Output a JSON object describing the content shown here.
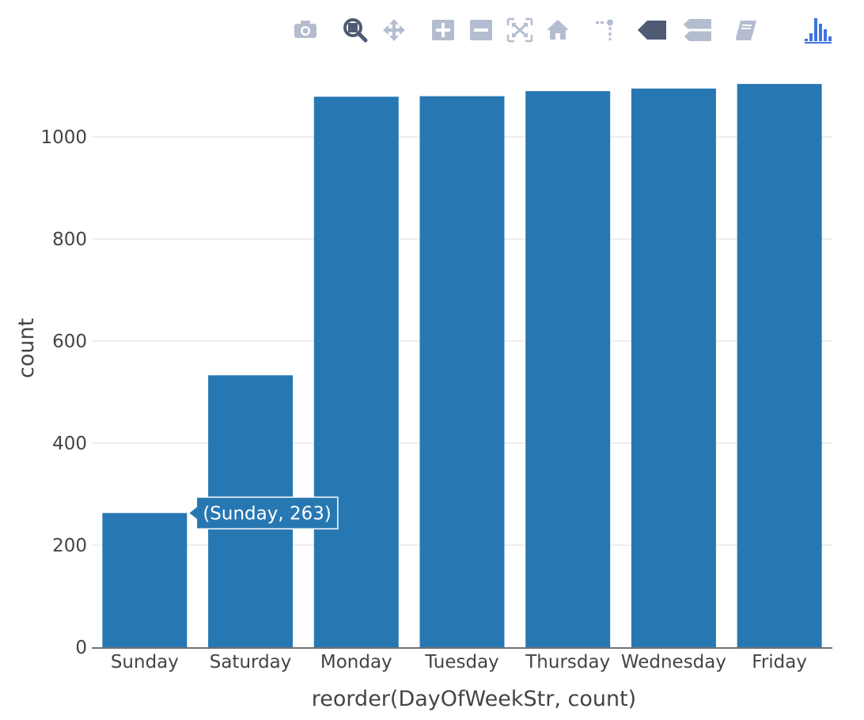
{
  "toolbar": {
    "buttons": [
      {
        "name": "camera-icon",
        "title": "Download plot as a png",
        "active": false
      },
      {
        "name": "zoom-icon",
        "title": "Zoom",
        "active": true
      },
      {
        "name": "pan-icon",
        "title": "Pan",
        "active": false
      },
      {
        "name": "zoom-in-icon",
        "title": "Zoom in",
        "active": false
      },
      {
        "name": "zoom-out-icon",
        "title": "Zoom out",
        "active": false
      },
      {
        "name": "autoscale-icon",
        "title": "Autoscale",
        "active": false
      },
      {
        "name": "home-icon",
        "title": "Reset axes",
        "active": false
      },
      {
        "name": "spikelines-icon",
        "title": "Toggle Spike Lines",
        "active": false
      },
      {
        "name": "hover-closest-icon",
        "title": "Show closest data on hover",
        "active": true
      },
      {
        "name": "hover-compare-icon",
        "title": "Compare data on hover",
        "active": false
      },
      {
        "name": "edit-in-chart-studio-icon",
        "title": "Edit in Chart Studio",
        "active": false
      },
      {
        "name": "plotly-logo-icon",
        "title": "Produced with Plotly",
        "active": false
      }
    ],
    "colors": {
      "inactive": "#b4bdcf",
      "active": "#4f5b73",
      "logo": "#3f73df"
    }
  },
  "chart_data": {
    "type": "bar",
    "categories": [
      "Sunday",
      "Saturday",
      "Monday",
      "Tuesday",
      "Thursday",
      "Wednesday",
      "Friday"
    ],
    "values": [
      263,
      533,
      1079,
      1080,
      1090,
      1095,
      1104
    ],
    "xlabel": "reorder(DayOfWeekStr, count)",
    "ylabel": "count",
    "ylim": [
      0,
      1160
    ],
    "yticks": [
      0,
      200,
      400,
      600,
      800,
      1000
    ],
    "ytick_labels": [
      "0",
      "200",
      "400",
      "600",
      "800",
      "1000"
    ],
    "grid": true,
    "bar_color": "#2778b2",
    "hover": {
      "category_index": 0,
      "text": "(Sunday, 263)"
    }
  }
}
